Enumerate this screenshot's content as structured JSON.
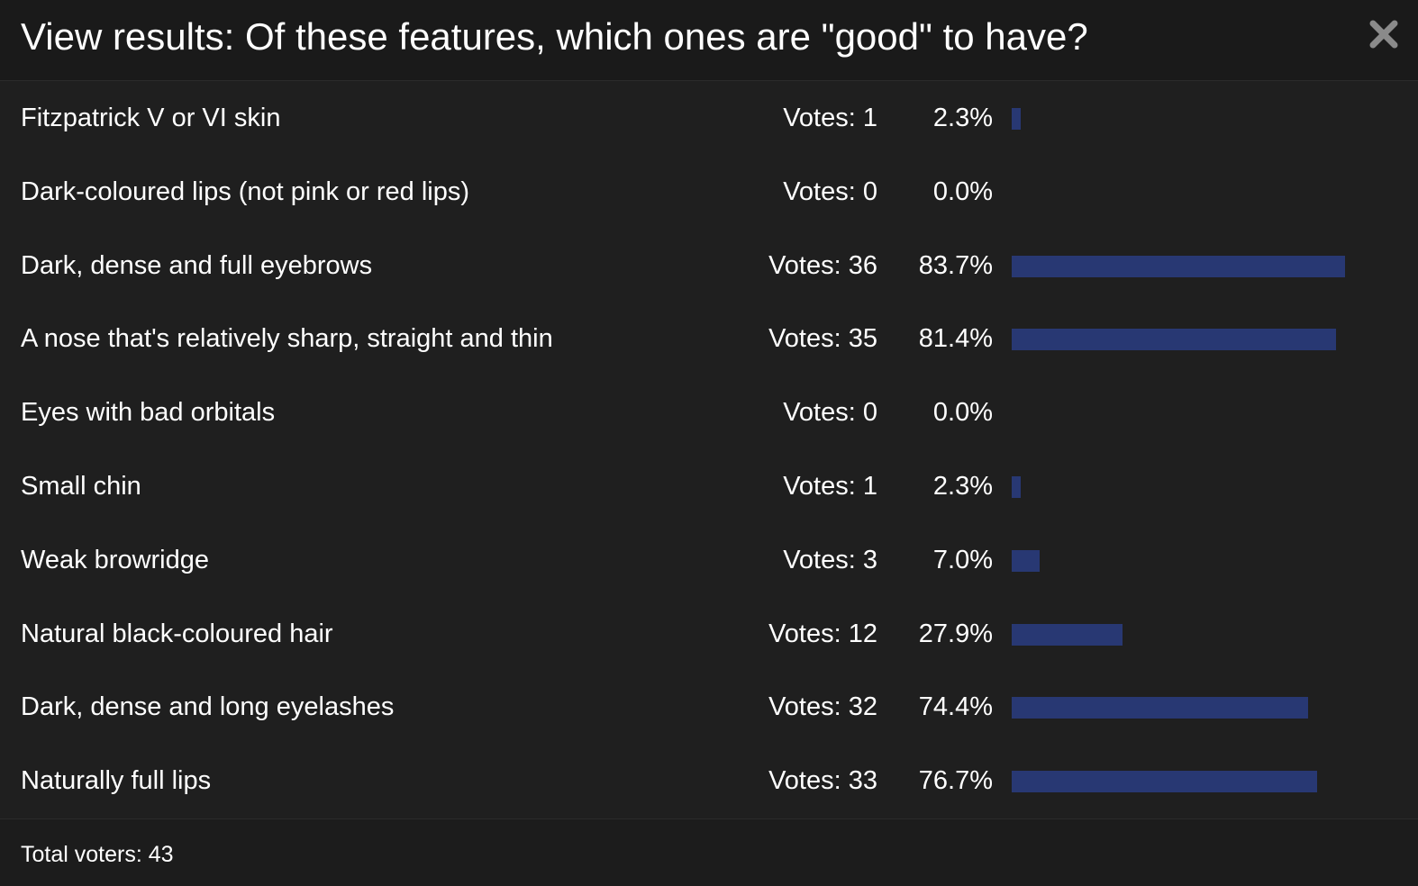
{
  "dialog": {
    "title": "View results: Of these features, which ones are \"good\" to have?",
    "close_icon": "close-icon",
    "bar_color": "#283873",
    "background_color": "#1f1f1f"
  },
  "results": [
    {
      "label": "Fitzpatrick V or VI skin",
      "votes_text": "Votes: 1",
      "percent_text": "2.3%",
      "percent": 2.3
    },
    {
      "label": "Dark-coloured lips (not pink or red lips)",
      "votes_text": "Votes: 0",
      "percent_text": "0.0%",
      "percent": 0.0
    },
    {
      "label": "Dark, dense and full eyebrows",
      "votes_text": "Votes: 36",
      "percent_text": "83.7%",
      "percent": 83.7
    },
    {
      "label": "A nose that's relatively sharp, straight and thin",
      "votes_text": "Votes: 35",
      "percent_text": "81.4%",
      "percent": 81.4
    },
    {
      "label": "Eyes with bad orbitals",
      "votes_text": "Votes: 0",
      "percent_text": "0.0%",
      "percent": 0.0
    },
    {
      "label": "Small chin",
      "votes_text": "Votes: 1",
      "percent_text": "2.3%",
      "percent": 2.3
    },
    {
      "label": "Weak browridge",
      "votes_text": "Votes: 3",
      "percent_text": "7.0%",
      "percent": 7.0
    },
    {
      "label": "Natural black-coloured hair",
      "votes_text": "Votes: 12",
      "percent_text": "27.9%",
      "percent": 27.9
    },
    {
      "label": "Dark, dense and long eyelashes",
      "votes_text": "Votes: 32",
      "percent_text": "74.4%",
      "percent": 74.4
    },
    {
      "label": "Naturally full lips",
      "votes_text": "Votes: 33",
      "percent_text": "76.7%",
      "percent": 76.7
    }
  ],
  "footer": {
    "total_voters_text": "Total voters: 43"
  }
}
